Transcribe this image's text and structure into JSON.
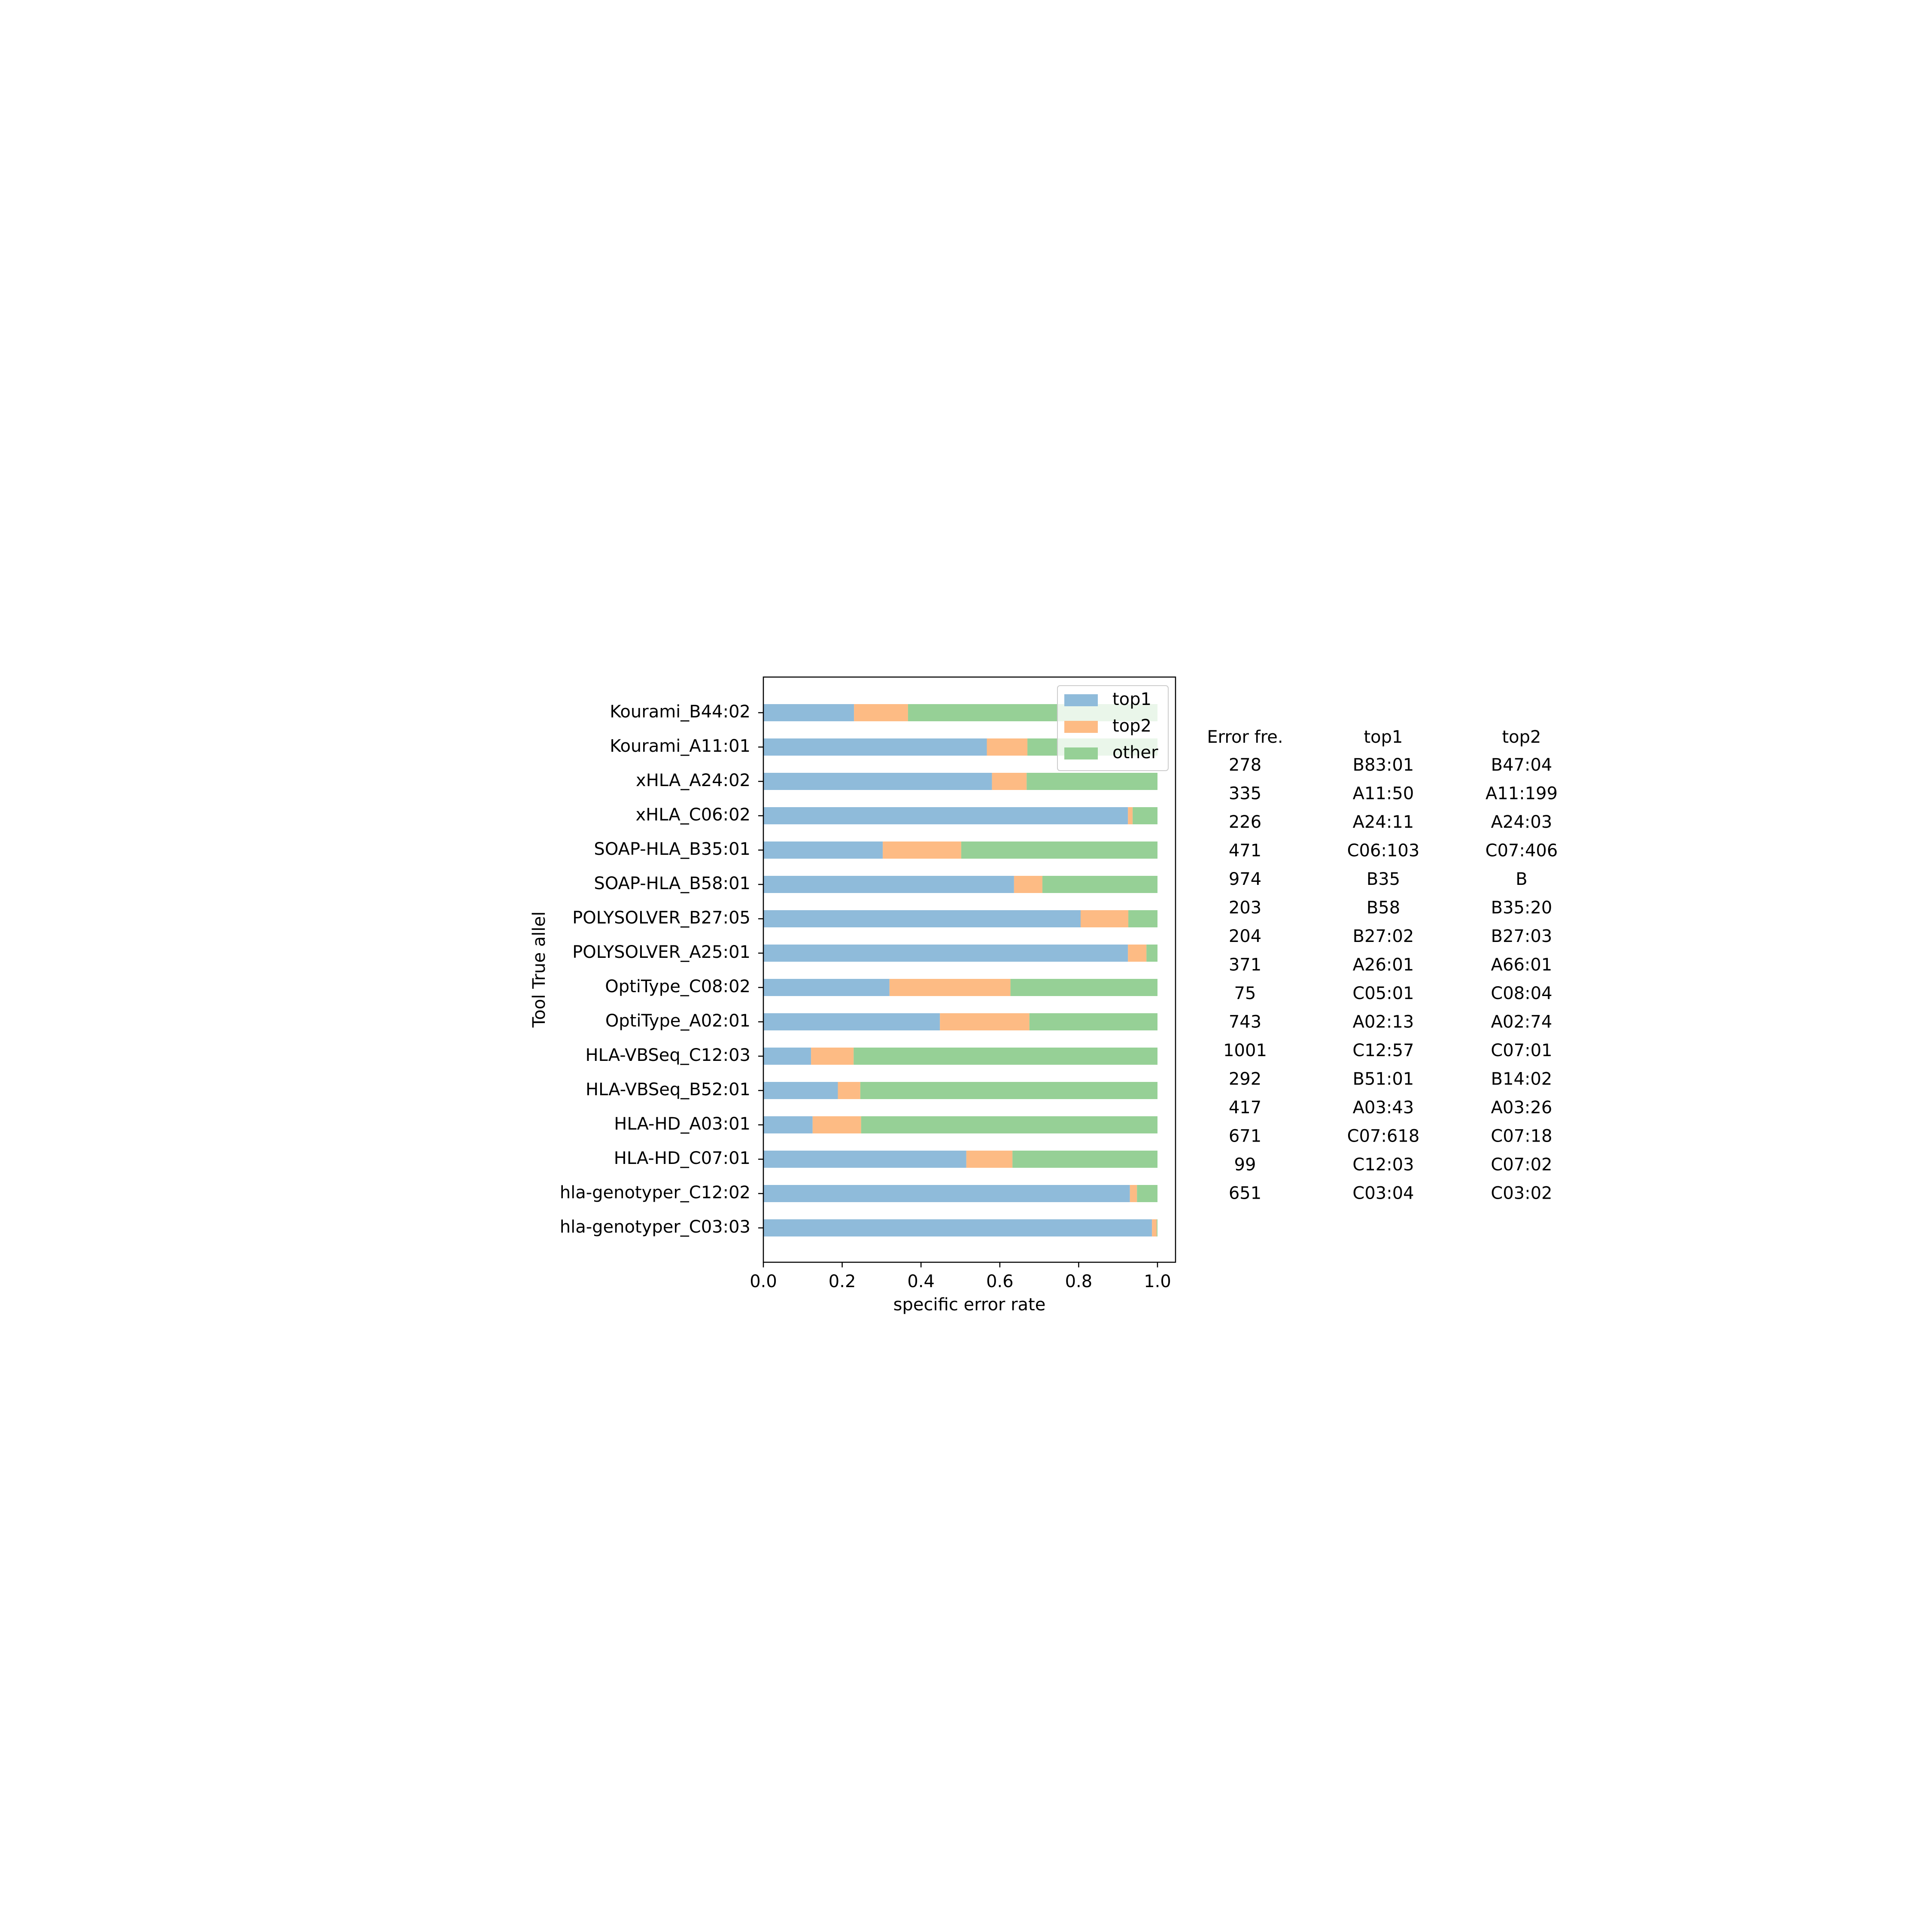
{
  "chart_data": {
    "type": "bar",
    "orientation": "horizontal",
    "stacked": true,
    "categories": [
      "Kourami_B44:02",
      "Kourami_A11:01",
      "xHLA_A24:02",
      "xHLA_C06:02",
      "SOAP-HLA_B35:01",
      "SOAP-HLA_B58:01",
      "POLYSOLVER_B27:05",
      "POLYSOLVER_A25:01",
      "OptiType_C08:02",
      "OptiType_A02:01",
      "HLA-VBSeq_C12:03",
      "HLA-VBSeq_B52:01",
      "HLA-HD_A03:01",
      "HLA-HD_C07:01",
      "hla-genotyper_C12:02",
      "hla-genotyper_C03:03"
    ],
    "series": [
      {
        "name": "top1",
        "color": "#8fbbda",
        "values": [
          0.23,
          0.567,
          0.58,
          0.925,
          0.303,
          0.636,
          0.805,
          0.925,
          0.32,
          0.448,
          0.121,
          0.189,
          0.125,
          0.515,
          0.93,
          0.986
        ]
      },
      {
        "name": "top2",
        "color": "#fdbb84",
        "values": [
          0.137,
          0.103,
          0.088,
          0.012,
          0.199,
          0.072,
          0.121,
          0.047,
          0.307,
          0.227,
          0.108,
          0.057,
          0.123,
          0.117,
          0.018,
          0.012
        ]
      },
      {
        "name": "other",
        "color": "#96d096",
        "values": [
          0.633,
          0.33,
          0.332,
          0.063,
          0.498,
          0.292,
          0.074,
          0.028,
          0.373,
          0.325,
          0.771,
          0.754,
          0.752,
          0.368,
          0.052,
          0.002
        ]
      }
    ],
    "xlabel": "specific error rate",
    "ylabel": "Tool True allel",
    "title": "",
    "xlim": [
      0.0,
      1.05
    ],
    "xticks": [
      "0.0",
      "0.2",
      "0.4",
      "0.6",
      "0.8",
      "1.0"
    ],
    "grid": false,
    "legend_position": "top-right"
  },
  "table": {
    "headers": [
      "Error fre.",
      "top1",
      "top2"
    ],
    "rows": [
      [
        "278",
        "B83:01",
        "B47:04"
      ],
      [
        "335",
        "A11:50",
        "A11:199"
      ],
      [
        "226",
        "A24:11",
        "A24:03"
      ],
      [
        "471",
        "C06:103",
        "C07:406"
      ],
      [
        "974",
        "B35",
        "B"
      ],
      [
        "203",
        "B58",
        "B35:20"
      ],
      [
        "204",
        "B27:02",
        "B27:03"
      ],
      [
        "371",
        "A26:01",
        "A66:01"
      ],
      [
        "75",
        "C05:01",
        "C08:04"
      ],
      [
        "743",
        "A02:13",
        "A02:74"
      ],
      [
        "1001",
        "C12:57",
        "C07:01"
      ],
      [
        "292",
        "B51:01",
        "B14:02"
      ],
      [
        "417",
        "A03:43",
        "A03:26"
      ],
      [
        "671",
        "C07:618",
        "C07:18"
      ],
      [
        "99",
        "C12:03",
        "C07:02"
      ],
      [
        "651",
        "C03:04",
        "C03:02"
      ]
    ]
  }
}
